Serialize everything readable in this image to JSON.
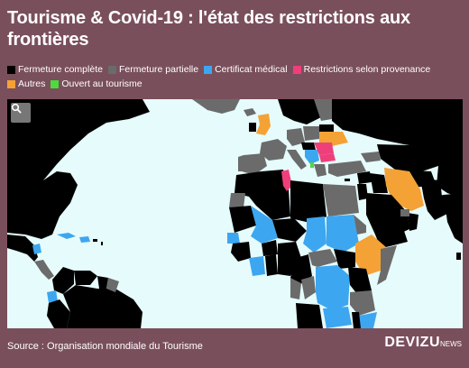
{
  "title": "Tourisme & Covid-19 : l'état des restrictions aux frontières",
  "legend": [
    {
      "label": "Fermeture complète",
      "color": "#000000"
    },
    {
      "label": "Fermeture partielle",
      "color": "#6b6b6b"
    },
    {
      "label": "Certificat médical",
      "color": "#3da6f0"
    },
    {
      "label": "Restrictions selon provenance",
      "color": "#ef3f7b"
    },
    {
      "label": "Autres",
      "color": "#f4a236"
    },
    {
      "label": "Ouvert au tourisme",
      "color": "#4bdb3a"
    }
  ],
  "map": {
    "ocean_color": "#e6fbfb",
    "search_icon": "search-icon"
  },
  "source": "Source : Organisation mondiale du Tourisme",
  "brand": {
    "name": "DEVIZU",
    "suffix": "NEWS"
  }
}
